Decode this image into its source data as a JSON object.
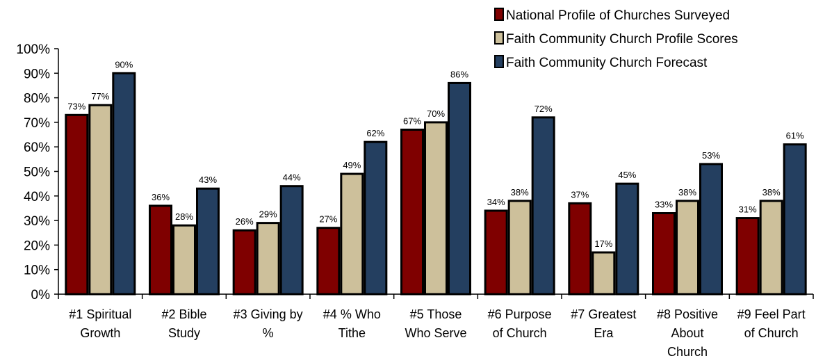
{
  "chart_data": {
    "type": "bar",
    "categories": [
      [
        "#1 Spiritual",
        "Growth"
      ],
      [
        "#2 Bible",
        "Study"
      ],
      [
        "#3 Giving by",
        "%"
      ],
      [
        "#4 % Who",
        "Tithe"
      ],
      [
        "#5 Those",
        "Who Serve"
      ],
      [
        "#6 Purpose",
        "of Church"
      ],
      [
        "#7 Greatest",
        "Era"
      ],
      [
        "#8 Positive",
        "About",
        "Church"
      ],
      [
        "#9 Feel Part",
        "of Church"
      ]
    ],
    "series": [
      {
        "name": "National Profile of Churches Surveyed",
        "color": "#7f0000",
        "values": [
          73,
          36,
          26,
          27,
          67,
          34,
          37,
          33,
          31
        ],
        "labels": [
          "73%",
          "36%",
          "26%",
          "27%",
          "67%",
          "34%",
          "37%",
          "33%",
          "31%"
        ]
      },
      {
        "name": "Faith Community Church Profile Scores",
        "color": "#cdc09b",
        "values": [
          77,
          28,
          29,
          49,
          70,
          38,
          17,
          38,
          38
        ],
        "labels": [
          "77%",
          "28%",
          "29%",
          "49%",
          "70%",
          "38%",
          "17%",
          "38%",
          "38%"
        ]
      },
      {
        "name": "Faith Community Church Forecast",
        "color": "#243f60",
        "values": [
          90,
          43,
          44,
          62,
          86,
          72,
          45,
          53,
          61
        ],
        "labels": [
          "90%",
          "43%",
          "44%",
          "62%",
          "86%",
          "72%",
          "45%",
          "53%",
          "61%"
        ]
      }
    ],
    "y_ticks": [
      "0%",
      "10%",
      "20%",
      "30%",
      "40%",
      "50%",
      "60%",
      "70%",
      "80%",
      "90%",
      "100%"
    ],
    "ylim": [
      0,
      100
    ],
    "grid": false,
    "legend_position": "top-right"
  }
}
